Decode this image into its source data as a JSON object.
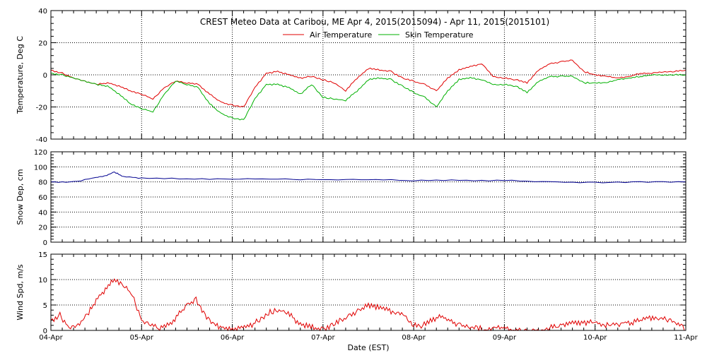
{
  "chart_data": [
    {
      "type": "line",
      "title": "CREST Meteo Data at Caribou, ME   Apr  4, 2015(2015094) - Apr 11, 2015(2015101)",
      "ylabel": "Temperature, Deg C",
      "ylim": [
        -40,
        40
      ],
      "yticks": [
        -40,
        -20,
        0,
        20,
        40
      ],
      "x_range": [
        0,
        7
      ],
      "grid": true,
      "legend_position": "top-center",
      "series": [
        {
          "name": "Air Temperature",
          "color": "#e00000",
          "x": [
            0,
            0.125,
            0.25,
            0.375,
            0.5,
            0.625,
            0.75,
            0.875,
            1.0,
            1.125,
            1.25,
            1.375,
            1.5,
            1.625,
            1.75,
            1.875,
            2.0,
            2.125,
            2.25,
            2.375,
            2.5,
            2.625,
            2.75,
            2.875,
            3.0,
            3.125,
            3.25,
            3.375,
            3.5,
            3.625,
            3.75,
            3.875,
            4.0,
            4.125,
            4.25,
            4.375,
            4.5,
            4.625,
            4.75,
            4.875,
            5.0,
            5.125,
            5.25,
            5.375,
            5.5,
            5.625,
            5.75,
            5.875,
            6.0,
            6.125,
            6.25,
            6.375,
            6.5,
            6.625,
            6.75,
            6.875,
            7.0
          ],
          "values": [
            3,
            1,
            -2,
            -4,
            -6,
            -5,
            -7,
            -10,
            -12,
            -15,
            -8,
            -4,
            -5,
            -6,
            -12,
            -17,
            -19,
            -20,
            -8,
            1,
            2,
            0,
            -2,
            -1,
            -3,
            -5,
            -10,
            -2,
            4,
            3,
            2,
            -2,
            -4,
            -6,
            -10,
            -2,
            3,
            5,
            7,
            -1,
            -2,
            -3,
            -5,
            3,
            7,
            8,
            9,
            2,
            0,
            -1,
            -2,
            -1,
            1,
            1,
            2,
            2,
            3
          ]
        },
        {
          "name": "Skin Temperature",
          "color": "#00b000",
          "x": [
            0,
            0.125,
            0.25,
            0.375,
            0.5,
            0.625,
            0.75,
            0.875,
            1.0,
            1.125,
            1.25,
            1.375,
            1.5,
            1.625,
            1.75,
            1.875,
            2.0,
            2.125,
            2.25,
            2.375,
            2.5,
            2.625,
            2.75,
            2.875,
            3.0,
            3.125,
            3.25,
            3.375,
            3.5,
            3.625,
            3.75,
            3.875,
            4.0,
            4.125,
            4.25,
            4.375,
            4.5,
            4.625,
            4.75,
            4.875,
            5.0,
            5.125,
            5.25,
            5.375,
            5.5,
            5.625,
            5.75,
            5.875,
            6.0,
            6.125,
            6.25,
            6.375,
            6.5,
            6.625,
            6.75,
            6.875,
            7.0
          ],
          "values": [
            1,
            0,
            -2,
            -4,
            -6,
            -7,
            -12,
            -18,
            -21,
            -23,
            -12,
            -4,
            -6,
            -8,
            -18,
            -24,
            -27,
            -28,
            -15,
            -6,
            -6,
            -8,
            -12,
            -6,
            -14,
            -15,
            -16,
            -10,
            -3,
            -2,
            -3,
            -7,
            -11,
            -14,
            -20,
            -10,
            -3,
            -2,
            -3,
            -6,
            -6,
            -7,
            -11,
            -4,
            -1,
            -1,
            -1,
            -5,
            -5,
            -5,
            -3,
            -2,
            -1,
            0,
            0,
            0,
            0
          ]
        }
      ]
    },
    {
      "type": "line",
      "ylabel": "Snow Dep, cm",
      "ylim": [
        0,
        120
      ],
      "yticks": [
        0,
        20,
        40,
        60,
        80,
        100,
        120
      ],
      "x_range": [
        0,
        7
      ],
      "grid": true,
      "series": [
        {
          "color": "#000090",
          "x": [
            0,
            0.25,
            0.5,
            0.6,
            0.7,
            0.8,
            1.0,
            1.5,
            2.0,
            2.5,
            3.0,
            3.5,
            4.0,
            4.5,
            5.0,
            5.5,
            6.0,
            6.5,
            7.0
          ],
          "values": [
            80,
            80,
            86,
            88,
            93,
            87,
            85,
            84,
            84,
            84,
            83,
            83,
            82,
            82,
            82,
            80,
            79,
            80,
            80
          ]
        }
      ]
    },
    {
      "type": "line",
      "ylabel": "Wind Spd, m/s",
      "xlabel": "Date (EST)",
      "ylim": [
        0,
        15
      ],
      "yticks": [
        0,
        5,
        10,
        15
      ],
      "x_range": [
        0,
        7
      ],
      "x_ticks": [
        0,
        1,
        2,
        3,
        4,
        5,
        6,
        7
      ],
      "x_tick_labels": [
        "04-Apr",
        "05-Apr",
        "06-Apr",
        "07-Apr",
        "08-Apr",
        "09-Apr",
        "10-Apr",
        "11-Apr"
      ],
      "grid": true,
      "series": [
        {
          "color": "#e00000",
          "x": [
            0,
            0.1,
            0.2,
            0.3,
            0.4,
            0.5,
            0.6,
            0.7,
            0.8,
            0.9,
            1.0,
            1.1,
            1.2,
            1.3,
            1.4,
            1.5,
            1.6,
            1.7,
            1.8,
            1.9,
            2.0,
            2.1,
            2.2,
            2.3,
            2.4,
            2.5,
            2.6,
            2.7,
            2.8,
            2.9,
            3.0,
            3.1,
            3.2,
            3.3,
            3.4,
            3.5,
            3.6,
            3.7,
            3.8,
            3.9,
            4.0,
            4.1,
            4.2,
            4.3,
            4.4,
            4.5,
            4.6,
            4.7,
            4.8,
            4.9,
            5.0,
            5.1,
            5.2,
            5.3,
            5.4,
            5.5,
            5.6,
            5.7,
            5.8,
            5.9,
            6.0,
            6.1,
            6.2,
            6.3,
            6.4,
            6.5,
            6.6,
            6.7,
            6.8,
            6.9,
            7.0
          ],
          "values": [
            2,
            3,
            0.5,
            1,
            3,
            6,
            8,
            10,
            9,
            7,
            2,
            1,
            0.5,
            1,
            3,
            5,
            6,
            3,
            1,
            0.5,
            0,
            0.5,
            1,
            2,
            3.5,
            4,
            3.5,
            2,
            1,
            0.5,
            0,
            1,
            2,
            3,
            4,
            5,
            4.5,
            4,
            3.5,
            3,
            1,
            1,
            2,
            3,
            2,
            1,
            0.5,
            0.5,
            0,
            0.5,
            0.5,
            0,
            0,
            0,
            0,
            0.5,
            1,
            1.5,
            1.5,
            1.5,
            1.5,
            1,
            1,
            1.5,
            1.5,
            2,
            2.5,
            2.5,
            2,
            1.5,
            0
          ]
        }
      ]
    }
  ]
}
